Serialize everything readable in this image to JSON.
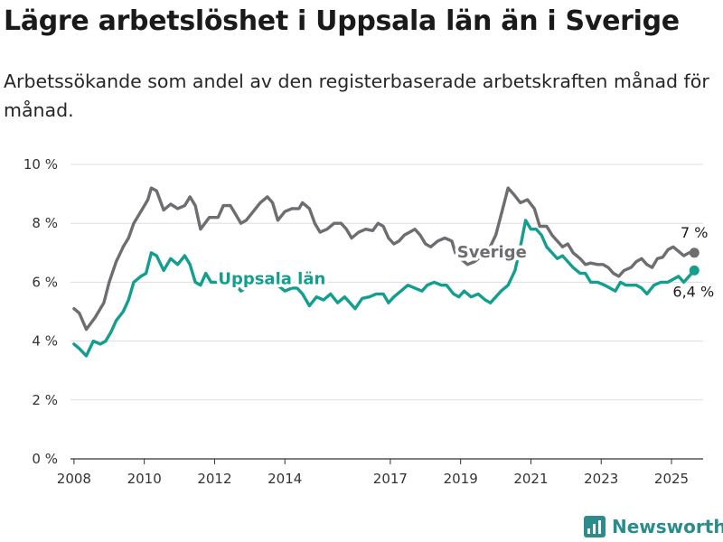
{
  "title": "Lägre arbetslöshet i Uppsala län än i Sverige",
  "subtitle": "Arbetssökande som andel av den registerbaserade arbetskraften månad för månad.",
  "brand": {
    "name": "Newsworthy",
    "icon": "chart-logo-icon"
  },
  "colors": {
    "sverige": "#6d6d72",
    "uppsala": "#149e8f",
    "grid": "#dddddd",
    "axis": "#333333",
    "brand": "#2b8c8c"
  },
  "chart_data": {
    "type": "line",
    "title": "Lägre arbetslöshet i Uppsala län än i Sverige",
    "subtitle": "Arbetssökande som andel av den registerbaserade arbetskraften månad för månad.",
    "ylim": [
      0,
      10
    ],
    "y_ticks": [
      0,
      2,
      4,
      6,
      8,
      10
    ],
    "y_tick_labels": [
      "0 %",
      "2 %",
      "4 %",
      "6 %",
      "8 %",
      "10 %"
    ],
    "xlim": [
      2007.9,
      2025.9
    ],
    "x_ticks": [
      2008,
      2010,
      2012,
      2014,
      2017,
      2019,
      2021,
      2023,
      2025
    ],
    "x_tick_labels": [
      "2008",
      "2010",
      "2012",
      "2014",
      "2017",
      "2019",
      "2021",
      "2023",
      "2025"
    ],
    "grid": true,
    "legend": "inline labels",
    "series": [
      {
        "name": "Sverige",
        "end_label": "7 %",
        "points": [
          [
            2008.0,
            5.1
          ],
          [
            2008.15,
            4.95
          ],
          [
            2008.35,
            4.4
          ],
          [
            2008.6,
            4.8
          ],
          [
            2008.85,
            5.3
          ],
          [
            2009.0,
            6.0
          ],
          [
            2009.2,
            6.7
          ],
          [
            2009.4,
            7.2
          ],
          [
            2009.55,
            7.5
          ],
          [
            2009.7,
            8.0
          ],
          [
            2009.9,
            8.4
          ],
          [
            2010.1,
            8.8
          ],
          [
            2010.2,
            9.2
          ],
          [
            2010.35,
            9.1
          ],
          [
            2010.55,
            8.45
          ],
          [
            2010.75,
            8.65
          ],
          [
            2010.95,
            8.5
          ],
          [
            2011.15,
            8.6
          ],
          [
            2011.3,
            8.9
          ],
          [
            2011.45,
            8.6
          ],
          [
            2011.6,
            7.8
          ],
          [
            2011.85,
            8.2
          ],
          [
            2012.1,
            8.2
          ],
          [
            2012.25,
            8.6
          ],
          [
            2012.45,
            8.6
          ],
          [
            2012.6,
            8.3
          ],
          [
            2012.75,
            8.0
          ],
          [
            2012.9,
            8.1
          ],
          [
            2013.1,
            8.4
          ],
          [
            2013.3,
            8.7
          ],
          [
            2013.5,
            8.9
          ],
          [
            2013.65,
            8.7
          ],
          [
            2013.8,
            8.1
          ],
          [
            2014.0,
            8.4
          ],
          [
            2014.2,
            8.5
          ],
          [
            2014.4,
            8.5
          ],
          [
            2014.5,
            8.7
          ],
          [
            2014.7,
            8.5
          ],
          [
            2014.85,
            8.0
          ],
          [
            2015.0,
            7.7
          ],
          [
            2015.2,
            7.8
          ],
          [
            2015.4,
            8.0
          ],
          [
            2015.6,
            8.0
          ],
          [
            2015.75,
            7.8
          ],
          [
            2015.9,
            7.5
          ],
          [
            2016.1,
            7.7
          ],
          [
            2016.3,
            7.8
          ],
          [
            2016.5,
            7.75
          ],
          [
            2016.65,
            8.0
          ],
          [
            2016.8,
            7.9
          ],
          [
            2016.95,
            7.5
          ],
          [
            2017.1,
            7.3
          ],
          [
            2017.25,
            7.4
          ],
          [
            2017.4,
            7.6
          ],
          [
            2017.55,
            7.7
          ],
          [
            2017.7,
            7.8
          ],
          [
            2017.85,
            7.6
          ],
          [
            2018.0,
            7.3
          ],
          [
            2018.15,
            7.2
          ],
          [
            2018.35,
            7.4
          ],
          [
            2018.55,
            7.5
          ],
          [
            2018.75,
            7.4
          ],
          [
            2018.85,
            7.0
          ],
          [
            2019.0,
            6.8
          ],
          [
            2019.2,
            6.6
          ],
          [
            2019.4,
            6.7
          ],
          [
            2019.6,
            6.9
          ],
          [
            2019.8,
            7.1
          ],
          [
            2020.0,
            7.6
          ],
          [
            2020.2,
            8.5
          ],
          [
            2020.35,
            9.2
          ],
          [
            2020.5,
            9.0
          ],
          [
            2020.7,
            8.7
          ],
          [
            2020.9,
            8.8
          ],
          [
            2021.1,
            8.5
          ],
          [
            2021.25,
            7.9
          ],
          [
            2021.45,
            7.9
          ],
          [
            2021.6,
            7.6
          ],
          [
            2021.75,
            7.4
          ],
          [
            2021.9,
            7.2
          ],
          [
            2022.05,
            7.3
          ],
          [
            2022.2,
            7.0
          ],
          [
            2022.4,
            6.8
          ],
          [
            2022.55,
            6.6
          ],
          [
            2022.7,
            6.65
          ],
          [
            2022.9,
            6.6
          ],
          [
            2023.05,
            6.6
          ],
          [
            2023.2,
            6.5
          ],
          [
            2023.35,
            6.3
          ],
          [
            2023.5,
            6.2
          ],
          [
            2023.65,
            6.4
          ],
          [
            2023.85,
            6.5
          ],
          [
            2024.0,
            6.7
          ],
          [
            2024.15,
            6.8
          ],
          [
            2024.3,
            6.6
          ],
          [
            2024.45,
            6.5
          ],
          [
            2024.6,
            6.8
          ],
          [
            2024.75,
            6.85
          ],
          [
            2024.9,
            7.1
          ],
          [
            2025.05,
            7.2
          ],
          [
            2025.2,
            7.05
          ],
          [
            2025.35,
            6.9
          ],
          [
            2025.5,
            7.0
          ],
          [
            2025.65,
            7.0
          ]
        ]
      },
      {
        "name": "Uppsala län",
        "end_label": "6,4 %",
        "points": [
          [
            2008.0,
            3.9
          ],
          [
            2008.15,
            3.75
          ],
          [
            2008.35,
            3.5
          ],
          [
            2008.55,
            4.0
          ],
          [
            2008.75,
            3.9
          ],
          [
            2008.9,
            4.0
          ],
          [
            2009.05,
            4.3
          ],
          [
            2009.2,
            4.7
          ],
          [
            2009.4,
            5.0
          ],
          [
            2009.55,
            5.4
          ],
          [
            2009.7,
            6.0
          ],
          [
            2009.9,
            6.2
          ],
          [
            2010.05,
            6.3
          ],
          [
            2010.2,
            7.0
          ],
          [
            2010.35,
            6.9
          ],
          [
            2010.55,
            6.4
          ],
          [
            2010.75,
            6.8
          ],
          [
            2010.95,
            6.6
          ],
          [
            2011.15,
            6.9
          ],
          [
            2011.3,
            6.6
          ],
          [
            2011.45,
            6.0
          ],
          [
            2011.6,
            5.9
          ],
          [
            2011.75,
            6.3
          ],
          [
            2011.9,
            6.0
          ],
          [
            2012.1,
            6.0
          ],
          [
            2012.25,
            6.2
          ],
          [
            2012.4,
            6.2
          ],
          [
            2012.55,
            6.0
          ],
          [
            2012.75,
            5.7
          ],
          [
            2012.9,
            5.8
          ],
          [
            2013.1,
            5.95
          ],
          [
            2013.3,
            6.2
          ],
          [
            2013.5,
            6.3
          ],
          [
            2013.65,
            6.1
          ],
          [
            2013.8,
            5.9
          ],
          [
            2014.0,
            5.7
          ],
          [
            2014.2,
            5.8
          ],
          [
            2014.35,
            5.8
          ],
          [
            2014.5,
            5.6
          ],
          [
            2014.7,
            5.2
          ],
          [
            2014.9,
            5.5
          ],
          [
            2015.1,
            5.4
          ],
          [
            2015.3,
            5.6
          ],
          [
            2015.5,
            5.3
          ],
          [
            2015.7,
            5.5
          ],
          [
            2015.85,
            5.3
          ],
          [
            2016.0,
            5.1
          ],
          [
            2016.2,
            5.45
          ],
          [
            2016.4,
            5.5
          ],
          [
            2016.6,
            5.6
          ],
          [
            2016.8,
            5.6
          ],
          [
            2016.95,
            5.3
          ],
          [
            2017.1,
            5.5
          ],
          [
            2017.3,
            5.7
          ],
          [
            2017.5,
            5.9
          ],
          [
            2017.7,
            5.8
          ],
          [
            2017.9,
            5.7
          ],
          [
            2018.05,
            5.9
          ],
          [
            2018.25,
            6.0
          ],
          [
            2018.45,
            5.9
          ],
          [
            2018.6,
            5.9
          ],
          [
            2018.8,
            5.6
          ],
          [
            2018.95,
            5.5
          ],
          [
            2019.1,
            5.7
          ],
          [
            2019.3,
            5.5
          ],
          [
            2019.5,
            5.6
          ],
          [
            2019.7,
            5.4
          ],
          [
            2019.85,
            5.3
          ],
          [
            2020.0,
            5.5
          ],
          [
            2020.15,
            5.7
          ],
          [
            2020.35,
            5.9
          ],
          [
            2020.55,
            6.4
          ],
          [
            2020.7,
            7.2
          ],
          [
            2020.85,
            8.1
          ],
          [
            2021.0,
            7.8
          ],
          [
            2021.15,
            7.8
          ],
          [
            2021.3,
            7.6
          ],
          [
            2021.45,
            7.2
          ],
          [
            2021.6,
            7.0
          ],
          [
            2021.75,
            6.8
          ],
          [
            2021.9,
            6.9
          ],
          [
            2022.05,
            6.7
          ],
          [
            2022.2,
            6.5
          ],
          [
            2022.4,
            6.3
          ],
          [
            2022.55,
            6.3
          ],
          [
            2022.7,
            6.0
          ],
          [
            2022.9,
            6.0
          ],
          [
            2023.1,
            5.9
          ],
          [
            2023.25,
            5.8
          ],
          [
            2023.4,
            5.7
          ],
          [
            2023.55,
            6.0
          ],
          [
            2023.7,
            5.9
          ],
          [
            2023.85,
            5.9
          ],
          [
            2024.0,
            5.9
          ],
          [
            2024.15,
            5.8
          ],
          [
            2024.3,
            5.6
          ],
          [
            2024.5,
            5.9
          ],
          [
            2024.7,
            6.0
          ],
          [
            2024.9,
            6.0
          ],
          [
            2025.05,
            6.1
          ],
          [
            2025.2,
            6.2
          ],
          [
            2025.35,
            6.0
          ],
          [
            2025.5,
            6.2
          ],
          [
            2025.65,
            6.4
          ]
        ]
      }
    ]
  }
}
